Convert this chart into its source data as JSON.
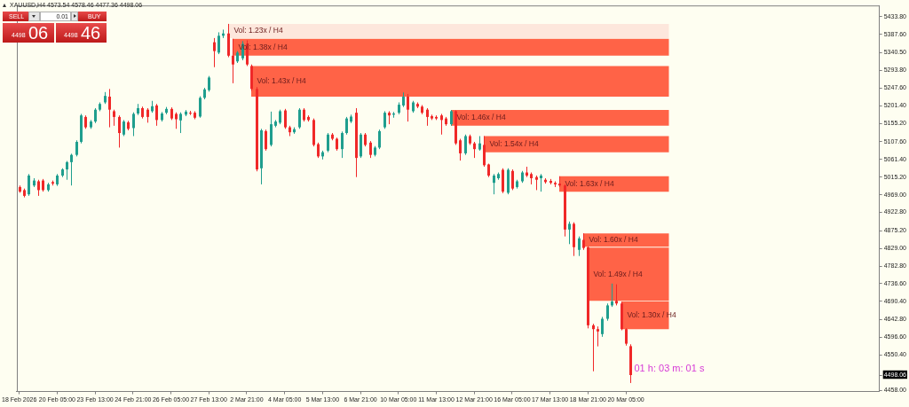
{
  "chart_data": {
    "type": "candlestick",
    "title": "XAUUSD,H4 4573.54 4578.46 4477.36 4498.06",
    "categories": [
      "18 Feb 2026",
      null,
      null,
      null,
      null,
      null,
      null,
      null,
      "20 Feb 05:00",
      null,
      null,
      null,
      null,
      null,
      null,
      null,
      "23 Feb 13:00",
      null,
      null,
      null,
      null,
      null,
      null,
      null,
      "24 Feb 21:00",
      null,
      null,
      null,
      null,
      null,
      null,
      null,
      "26 Feb 05:00",
      null,
      null,
      null,
      null,
      null,
      null,
      null,
      "27 Feb 13:00",
      null,
      null,
      null,
      null,
      null,
      null,
      null,
      "2 Mar 21:00",
      null,
      null,
      null,
      null,
      null,
      null,
      null,
      "4 Mar 05:00",
      null,
      null,
      null,
      null,
      null,
      null,
      null,
      "5 Mar 13:00",
      null,
      null,
      null,
      null,
      null,
      null,
      null,
      "6 Mar 21:00",
      null,
      null,
      null,
      null,
      null,
      null,
      null,
      "10 Mar 05:00",
      null,
      null,
      null,
      null,
      null,
      null,
      null,
      "11 Mar 13:00",
      null,
      null,
      null,
      null,
      null,
      null,
      null,
      "12 Mar 21:00",
      null,
      null,
      null,
      null,
      null,
      null,
      null,
      "16 Mar 05:00",
      null,
      null,
      null,
      null,
      null,
      null,
      null,
      "17 Mar 13:00",
      null,
      null,
      null,
      null,
      null,
      null,
      null,
      "18 Mar 21:00",
      null,
      null,
      null,
      null,
      null,
      null,
      null,
      "20 Mar 05:00",
      null,
      null,
      null,
      null,
      null,
      null,
      null,
      null,
      null,
      null,
      null,
      null,
      null,
      null,
      null,
      null,
      null,
      null,
      null,
      null,
      null,
      null,
      null,
      null,
      null,
      null,
      null,
      null,
      null,
      null,
      null,
      null,
      null,
      null,
      null,
      null,
      null,
      null,
      null,
      null,
      null,
      null,
      null,
      null,
      null,
      null,
      null,
      null,
      null,
      null,
      null,
      null,
      null
    ],
    "ohlc": [
      [
        4989,
        4993,
        4974,
        4977
      ],
      [
        4981,
        4985,
        4962,
        4966
      ],
      [
        4970,
        5023,
        4966,
        5019
      ],
      [
        4993,
        5012,
        4989,
        5006
      ],
      [
        5004,
        5008,
        4966,
        4981
      ],
      [
        5006,
        5010,
        4977,
        4981
      ],
      [
        4981,
        5000,
        4977,
        4996
      ],
      [
        5002,
        5006,
        4993,
        4998
      ],
      [
        4996,
        5023,
        4992,
        5019
      ],
      [
        5019,
        5038,
        5015,
        5035
      ],
      [
        5035,
        5057,
        5008,
        5054
      ],
      [
        5054,
        5076,
        4993,
        5073
      ],
      [
        5073,
        5111,
        5069,
        5107
      ],
      [
        5107,
        5180,
        5103,
        5176
      ],
      [
        5172,
        5176,
        5141,
        5145
      ],
      [
        5145,
        5164,
        5141,
        5160
      ],
      [
        5160,
        5195,
        5156,
        5191
      ],
      [
        5191,
        5210,
        5187,
        5206
      ],
      [
        5210,
        5237,
        5206,
        5227
      ],
      [
        5225,
        5245,
        5145,
        5191
      ],
      [
        5187,
        5191,
        5149,
        5172
      ],
      [
        5172,
        5176,
        5092,
        5130
      ],
      [
        5126,
        5164,
        5122,
        5160
      ],
      [
        5158,
        5162,
        5137,
        5141
      ],
      [
        5143,
        5184,
        5122,
        5180
      ],
      [
        5181,
        5206,
        5177,
        5195
      ],
      [
        5195,
        5199,
        5168,
        5172
      ],
      [
        5191,
        5195,
        5157,
        5172
      ],
      [
        5187,
        5214,
        5183,
        5200
      ],
      [
        5202,
        5206,
        5149,
        5164
      ],
      [
        5164,
        5185,
        5160,
        5181
      ],
      [
        5183,
        5198,
        5179,
        5193
      ],
      [
        5193,
        5197,
        5164,
        5168
      ],
      [
        5180,
        5184,
        5141,
        5166
      ],
      [
        5163,
        5184,
        5130,
        5180
      ],
      [
        5178,
        5190,
        5174,
        5186
      ],
      [
        5183,
        5188,
        5177,
        5181
      ],
      [
        5183,
        5187,
        5166,
        5170
      ],
      [
        5173,
        5226,
        5170,
        5222
      ],
      [
        5222,
        5248,
        5218,
        5244
      ],
      [
        5242,
        5279,
        5238,
        5275
      ],
      [
        5367,
        5378,
        5302,
        5344
      ],
      [
        5340,
        5393,
        5336,
        5384
      ],
      [
        5384,
        5400,
        5378,
        5390
      ],
      [
        5390,
        5415,
        5328,
        5332
      ],
      [
        5332,
        5376,
        5260,
        5309
      ],
      [
        5317,
        5344,
        5313,
        5340
      ],
      [
        5325,
        5370,
        5320,
        5363
      ],
      [
        5363,
        5372,
        5305,
        5309
      ],
      [
        5305,
        5309,
        5240,
        5245
      ],
      [
        5245,
        5250,
        5030,
        5035
      ],
      [
        5038,
        5141,
        4996,
        5137
      ],
      [
        5135,
        5139,
        5084,
        5088
      ],
      [
        5099,
        5186,
        5095,
        5153
      ],
      [
        5149,
        5164,
        5145,
        5160
      ],
      [
        5157,
        5191,
        5153,
        5187
      ],
      [
        5189,
        5193,
        5141,
        5145
      ],
      [
        5145,
        5149,
        5122,
        5132
      ],
      [
        5132,
        5145,
        5128,
        5140
      ],
      [
        5145,
        5195,
        5141,
        5191
      ],
      [
        5191,
        5195,
        5160,
        5164
      ],
      [
        5172,
        5176,
        5160,
        5164
      ],
      [
        5164,
        5168,
        5095,
        5099
      ],
      [
        5101,
        5105,
        5065,
        5069
      ],
      [
        5069,
        5084,
        5061,
        5080
      ],
      [
        5084,
        5130,
        5080,
        5126
      ],
      [
        5126,
        5130,
        5111,
        5115
      ],
      [
        5115,
        5118,
        5084,
        5088
      ],
      [
        5088,
        5134,
        5065,
        5130
      ],
      [
        5130,
        5172,
        5126,
        5168
      ],
      [
        5160,
        5178,
        5156,
        5173
      ],
      [
        5183,
        5195,
        5015,
        5065
      ],
      [
        5069,
        5130,
        5065,
        5126
      ],
      [
        5126,
        5130,
        5095,
        5099
      ],
      [
        5105,
        5109,
        5065,
        5073
      ],
      [
        5073,
        5096,
        5069,
        5092
      ],
      [
        5092,
        5139,
        5088,
        5135
      ],
      [
        5145,
        5187,
        5141,
        5183
      ],
      [
        5183,
        5187,
        5153,
        5176
      ],
      [
        5178,
        5185,
        5170,
        5181
      ],
      [
        5183,
        5210,
        5179,
        5204
      ],
      [
        5202,
        5236,
        5198,
        5225
      ],
      [
        5225,
        5232,
        5160,
        5191
      ],
      [
        5187,
        5214,
        5183,
        5210
      ],
      [
        5206,
        5210,
        5195,
        5199
      ],
      [
        5199,
        5203,
        5179,
        5183
      ],
      [
        5191,
        5195,
        5149,
        5172
      ],
      [
        5174,
        5178,
        5164,
        5168
      ],
      [
        5172,
        5176,
        5164,
        5168
      ],
      [
        5176,
        5180,
        5126,
        5164
      ],
      [
        5168,
        5172,
        5149,
        5153
      ],
      [
        5153,
        5190,
        5149,
        5187
      ],
      [
        5187,
        5189,
        5099,
        5103
      ],
      [
        5111,
        5115,
        5058,
        5077
      ],
      [
        5077,
        5126,
        5073,
        5122
      ],
      [
        5122,
        5126,
        5099,
        5103
      ],
      [
        5103,
        5107,
        5065,
        5088
      ],
      [
        5087,
        5122,
        5084,
        5103
      ],
      [
        5099,
        5122,
        5042,
        5046
      ],
      [
        5048,
        5050,
        5015,
        5019
      ],
      [
        5000,
        5023,
        4970,
        5019
      ],
      [
        5012,
        5027,
        5008,
        5023
      ],
      [
        5034,
        5038,
        4973,
        4977
      ],
      [
        4974,
        5038,
        4970,
        5034
      ],
      [
        5031,
        5035,
        4981,
        4985
      ],
      [
        4989,
        5008,
        4985,
        5004
      ],
      [
        5004,
        5031,
        5000,
        5027
      ],
      [
        5027,
        5042,
        5015,
        5019
      ],
      [
        5023,
        5027,
        4996,
        5012
      ],
      [
        5015,
        5019,
        4981,
        5008
      ],
      [
        5012,
        5023,
        4977,
        5019
      ],
      [
        5008,
        5012,
        4998,
        5002
      ],
      [
        5005,
        5010,
        4996,
        5000
      ],
      [
        5000,
        5004,
        4989,
        4996
      ],
      [
        4998,
        5017,
        4989,
        4993
      ],
      [
        4993,
        4996,
        4860,
        4878
      ],
      [
        4878,
        4899,
        4840,
        4893
      ],
      [
        4893,
        4897,
        4809,
        4832
      ],
      [
        4825,
        4860,
        4809,
        4855
      ],
      [
        4851,
        4868,
        4825,
        4830
      ],
      [
        4832,
        4834,
        4620,
        4628
      ],
      [
        4628,
        4632,
        4508,
        4618
      ],
      [
        4618,
        4625,
        4573,
        4612
      ],
      [
        4605,
        4650,
        4598,
        4645
      ],
      [
        4645,
        4685,
        4640,
        4680
      ],
      [
        4680,
        4737,
        4676,
        4690
      ],
      [
        4692,
        4735,
        4680,
        4685
      ],
      [
        4685,
        4690,
        4615,
        4618
      ],
      [
        4618,
        4620,
        4575,
        4580
      ],
      [
        4573.54,
        4578.46,
        4477.36,
        4498.06
      ],
      null,
      null,
      null,
      null,
      null,
      null,
      null,
      null,
      null,
      null,
      null,
      null,
      null,
      null,
      null,
      null,
      null,
      null,
      null,
      null,
      null,
      null,
      null,
      null,
      null,
      null,
      null,
      null,
      null,
      null,
      null,
      null,
      null,
      null,
      null,
      null,
      null,
      null,
      null,
      null,
      null,
      null,
      null,
      null,
      null,
      null,
      null,
      null,
      null,
      null,
      null,
      null
    ],
    "colors": [
      "#f02828",
      "#f02828",
      "#1f9e8e",
      "#1f9e8e",
      "#f02828",
      "#f02828",
      "#1f9e8e",
      "#f02828",
      "#1f9e8e",
      "#1f9e8e",
      "#1f9e8e",
      "#1f9e8e",
      "#1f9e8e",
      "#1f9e8e",
      "#f02828",
      "#1f9e8e",
      "#1f9e8e",
      "#1f9e8e",
      "#1f9e8e",
      "#f02828",
      "#f02828",
      "#f02828",
      "#1f9e8e",
      "#f02828",
      "#1f9e8e",
      "#1f9e8e",
      "#f02828",
      "#f02828",
      "#1f9e8e",
      "#f02828",
      "#1f9e8e",
      "#1f9e8e",
      "#f02828",
      "#f02828",
      "#1f9e8e",
      "#1f9e8e",
      "#f02828",
      "#f02828",
      "#1f9e8e",
      "#1f9e8e",
      "#1f9e8e",
      "#f02828",
      "#1f9e8e",
      "#1f9e8e",
      "#f02828",
      "#f02828",
      "#1f9e8e",
      "#1f9e8e",
      "#f02828",
      "#f02828",
      "#f02828",
      "#1f9e8e",
      "#f02828",
      "#1f9e8e",
      "#1f9e8e",
      "#1f9e8e",
      "#f02828",
      "#f02828",
      "#1f9e8e",
      "#1f9e8e",
      "#f02828",
      "#f02828",
      "#f02828",
      "#f02828",
      "#1f9e8e",
      "#1f9e8e",
      "#f02828",
      "#f02828",
      "#1f9e8e",
      "#1f9e8e",
      "#1f9e8e",
      "#f02828",
      "#1f9e8e",
      "#f02828",
      "#f02828",
      "#1f9e8e",
      "#1f9e8e",
      "#1f9e8e",
      "#f02828",
      "#1f9e8e",
      "#1f9e8e",
      "#1f9e8e",
      "#f02828",
      "#1f9e8e",
      "#f02828",
      "#f02828",
      "#f02828",
      "#f02828",
      "#f02828",
      "#f02828",
      "#f02828",
      "#1f9e8e",
      "#f02828",
      "#f02828",
      "#1f9e8e",
      "#f02828",
      "#f02828",
      "#1f9e8e",
      "#f02828",
      "#f02828",
      "#1f9e8e",
      "#1f9e8e",
      "#f02828",
      "#1f9e8e",
      "#f02828",
      "#1f9e8e",
      "#1f9e8e",
      "#f02828",
      "#f02828",
      "#f02828",
      "#1f9e8e",
      "#f02828",
      "#f02828",
      "#f02828",
      "#f02828",
      "#f02828",
      "#1f9e8e",
      "#f02828",
      "#1f9e8e",
      "#f02828",
      "#f02828",
      "#f02828",
      "#f02828",
      "#1f9e8e",
      "#1f9e8e",
      "#1f9e8e",
      "#f02828",
      "#f02828",
      "#f02828",
      "#f02828",
      null,
      null,
      null,
      null,
      null,
      null,
      null,
      null,
      null,
      null,
      null,
      null,
      null,
      null,
      null,
      null,
      null,
      null,
      null,
      null,
      null,
      null,
      null,
      null,
      null,
      null,
      null,
      null,
      null,
      null,
      null,
      null,
      null,
      null,
      null,
      null,
      null,
      null,
      null,
      null,
      null,
      null,
      null,
      null,
      null,
      null,
      null,
      null,
      null,
      null,
      null,
      null
    ],
    "ylim": [
      4455,
      5463
    ],
    "yticks": [
      {
        "value": 4458,
        "label": "4458.00"
      },
      4498.06,
      {
        "value": 4550.4,
        "label": "4550.40"
      },
      {
        "value": 4596.6,
        "label": "4596.60"
      },
      {
        "value": 4642.8,
        "label": "4642.80"
      },
      {
        "value": 4690.4,
        "label": "4690.40"
      },
      {
        "value": 4736.6,
        "label": "4736.60"
      },
      {
        "value": 4782.8,
        "label": "4782.80"
      },
      {
        "value": 4829,
        "label": "4829.00"
      },
      {
        "value": 4875.2,
        "label": "4875.20"
      },
      {
        "value": 4922.8,
        "label": "4922.80"
      },
      {
        "value": 4969,
        "label": "4969.00"
      },
      {
        "value": 5015.2,
        "label": "5015.20"
      },
      {
        "value": 5061.4,
        "label": "5061.40"
      },
      {
        "value": 5107.6,
        "label": "5107.60"
      },
      {
        "value": 5155.2,
        "label": "5155.20"
      },
      {
        "value": 5201.4,
        "label": "5201.40"
      },
      {
        "value": 5247.6,
        "label": "5247.60"
      },
      {
        "value": 5293.8,
        "label": "5293.80"
      },
      {
        "value": 5340.5,
        "label": "5340.50"
      },
      {
        "value": 5387.6,
        "label": "5387.60"
      },
      {
        "value": 5433.8,
        "label": "5433.80"
      }
    ],
    "bands": [
      {
        "axis": "y",
        "from": 5378,
        "to": 5415,
        "label": "Vol: 1.23x / H4",
        "color": "#fde7dc"
      },
      {
        "axis": "y",
        "from": 5332,
        "to": 5376,
        "label": "Vol: 1.38x / H4",
        "color": "#ff6347"
      },
      {
        "axis": "y",
        "from": 5225,
        "to": 5305,
        "label": "Vol: 1.43x / H4",
        "color": "#ff6347"
      },
      {
        "axis": "y",
        "from": 5149,
        "to": 5190,
        "label": "Vol: 1.46x / H4",
        "color": "#ff6347"
      },
      {
        "axis": "y",
        "from": 5080,
        "to": 5122,
        "label": "Vol: 1.54x / H4",
        "color": "#ff6347"
      },
      {
        "axis": "y",
        "from": 4977,
        "to": 5017,
        "label": "Vol: 1.63x / H4",
        "color": "#ff6347"
      },
      {
        "axis": "y",
        "from": 4833,
        "to": 4868,
        "label": "Vol: 1.60x / H4",
        "color": "#ff6347"
      },
      {
        "axis": "y",
        "from": 4692,
        "to": 4831,
        "label": "Vol: 1.49x / H4",
        "color": "#ff6347"
      },
      {
        "axis": "y",
        "from": 4618,
        "to": 4690,
        "label": "Vol: 1.30x / H4",
        "color": "#ff6347"
      }
    ],
    "annotations": [
      "SELL",
      "0.01",
      "BUY",
      "4498",
      "06",
      "4498",
      "46",
      "01 h: 03 m: 01 s"
    ]
  }
}
